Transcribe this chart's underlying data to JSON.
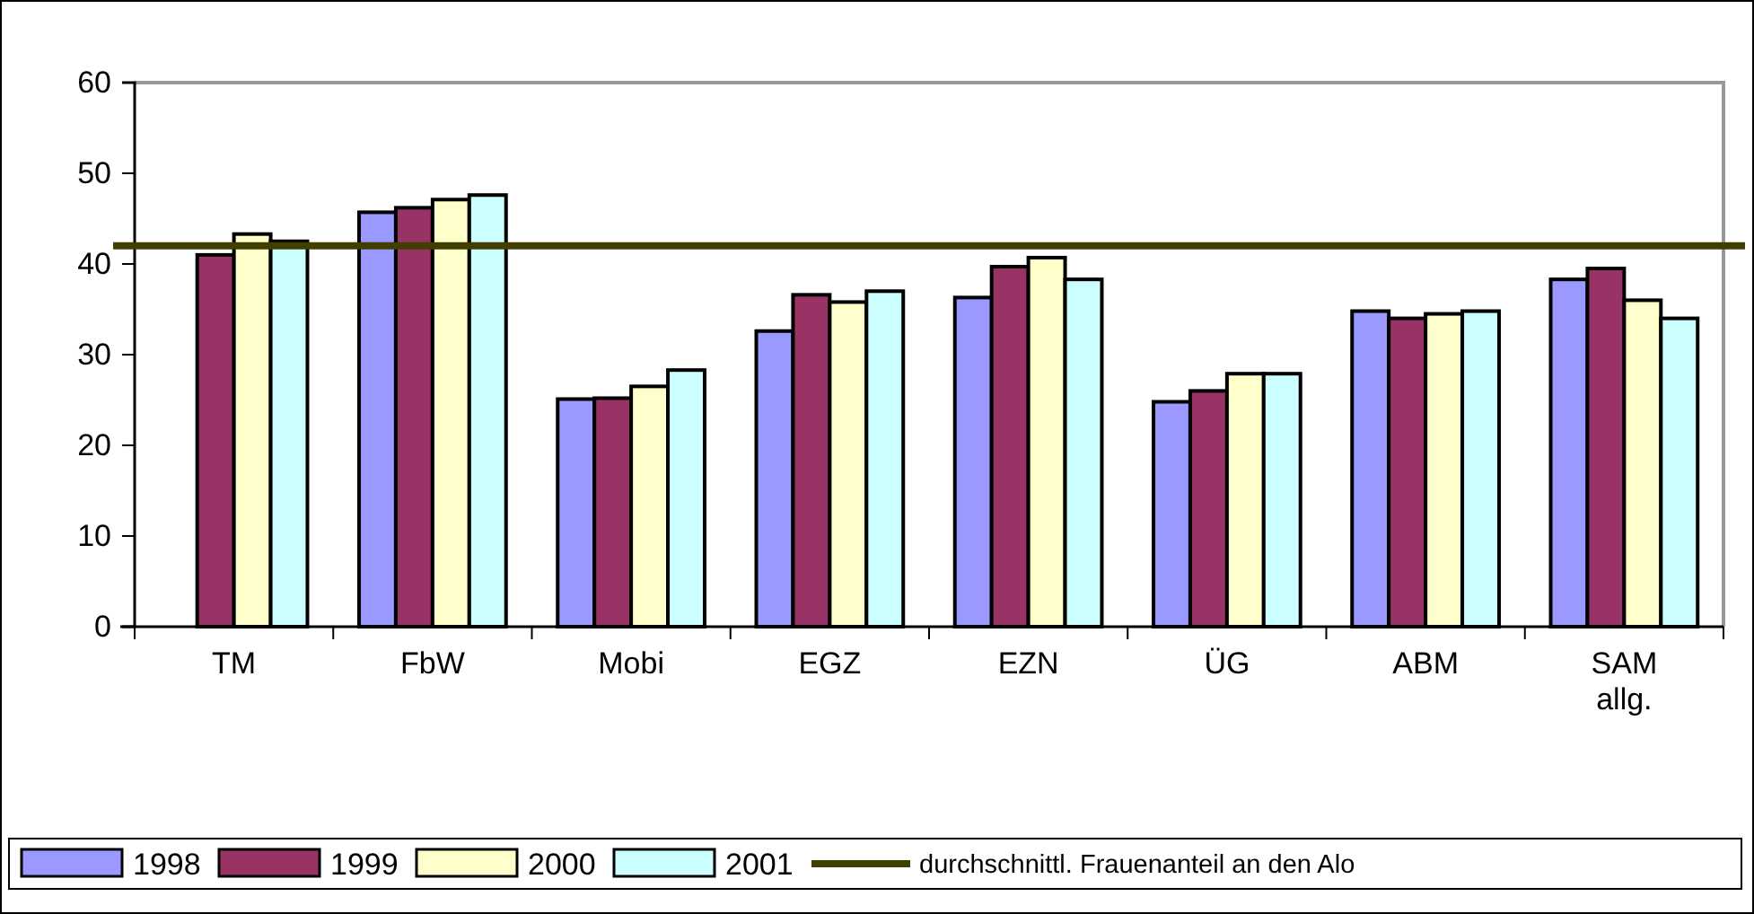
{
  "chart_data": {
    "type": "bar",
    "categories": [
      "TM",
      "FbW",
      "Mobi",
      "EGZ",
      "EZN",
      "ÜG",
      "ABM",
      "SAM allg."
    ],
    "series": [
      {
        "name": "1998",
        "color": "#9999ff",
        "values": [
          null,
          45.7,
          25.1,
          32.6,
          36.3,
          24.8,
          34.8,
          38.3
        ]
      },
      {
        "name": "1999",
        "color": "#993366",
        "values": [
          41.0,
          46.2,
          25.2,
          36.6,
          39.7,
          26.0,
          34.0,
          39.5
        ]
      },
      {
        "name": "2000",
        "color": "#ffffcc",
        "values": [
          43.3,
          47.1,
          26.5,
          35.8,
          40.7,
          27.9,
          34.5,
          36.0
        ]
      },
      {
        "name": "2001",
        "color": "#ccffff",
        "values": [
          42.5,
          47.6,
          28.3,
          37.0,
          38.3,
          27.9,
          34.8,
          34.0
        ]
      }
    ],
    "ylim": [
      0,
      60
    ],
    "yticks": [
      0,
      10,
      20,
      30,
      40,
      50,
      60
    ],
    "grid": false,
    "legend": "bottom",
    "ref_lines": [
      {
        "axis": "y",
        "value": 42.0,
        "label": "durchschnittl. Frauenanteil an den Alo",
        "color": "#403f00"
      }
    ]
  }
}
